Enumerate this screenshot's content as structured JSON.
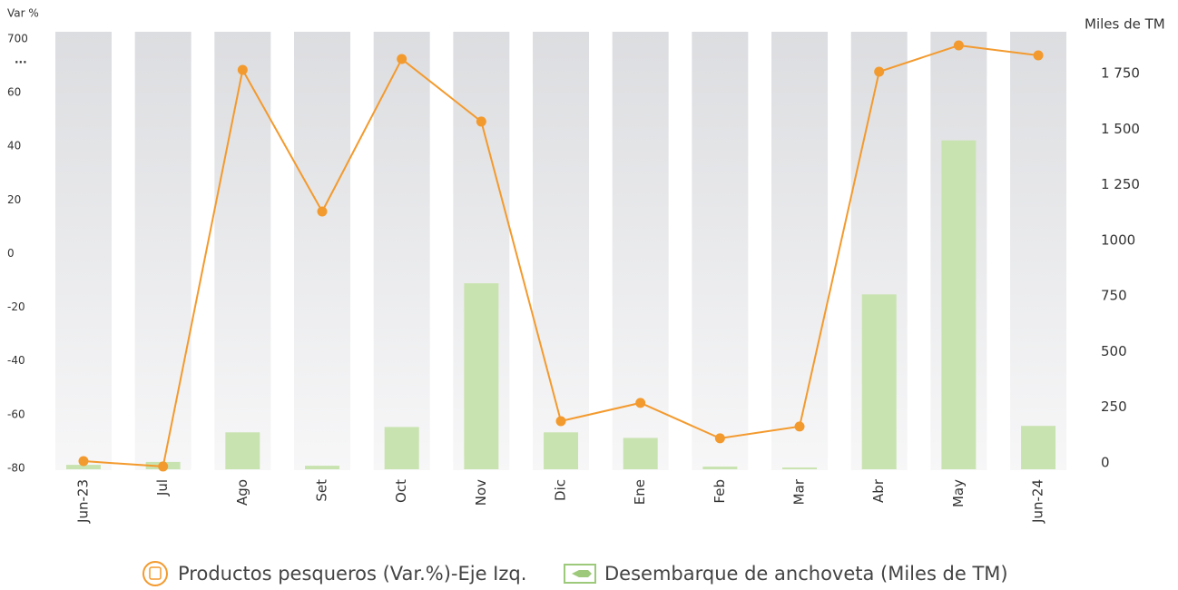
{
  "chart_data": {
    "type": "bar_line",
    "y_axis_label": "Var %",
    "y2_axis_label": "Miles de TM",
    "categories": [
      "Jun-23",
      "Jul",
      "Ago",
      "Set",
      "Oct",
      "Nov",
      "Dic",
      "Ene",
      "Feb",
      "Mar",
      "Abr",
      "May",
      "Jun-24"
    ],
    "series": [
      {
        "name": "Productos pesqueros (Var.%)-Eje Izq.",
        "type": "line",
        "axis": "y",
        "color": "#f39a2e",
        "values": [
          -77.3,
          -79.3,
          331,
          15.7,
          461,
          49.2,
          -62.4,
          -55.6,
          -68.8,
          -64.4,
          309,
          624,
          505
        ]
      },
      {
        "name": "Desembarque de anchoveta (Miles de TM)",
        "type": "bar",
        "axis": "y2",
        "color": "#c9e3b0",
        "values": [
          20,
          33,
          166,
          16,
          190,
          836,
          166,
          141,
          12,
          8,
          786,
          1478,
          195
        ]
      }
    ],
    "ylim": [
      -80,
      700
    ],
    "axis_break": 60,
    "axis_break_label": "...",
    "yticks": [
      -80,
      -60,
      -40,
      -20,
      0,
      20,
      40,
      60,
      700
    ],
    "y2lim": [
      0,
      1750
    ],
    "y2ticks": [
      0,
      250,
      500,
      750,
      1000,
      {
        "value": 1250,
        "label": "1 250"
      },
      {
        "value": 1500,
        "label": "1 500"
      },
      {
        "value": 1750,
        "label": "1 750"
      }
    ]
  }
}
